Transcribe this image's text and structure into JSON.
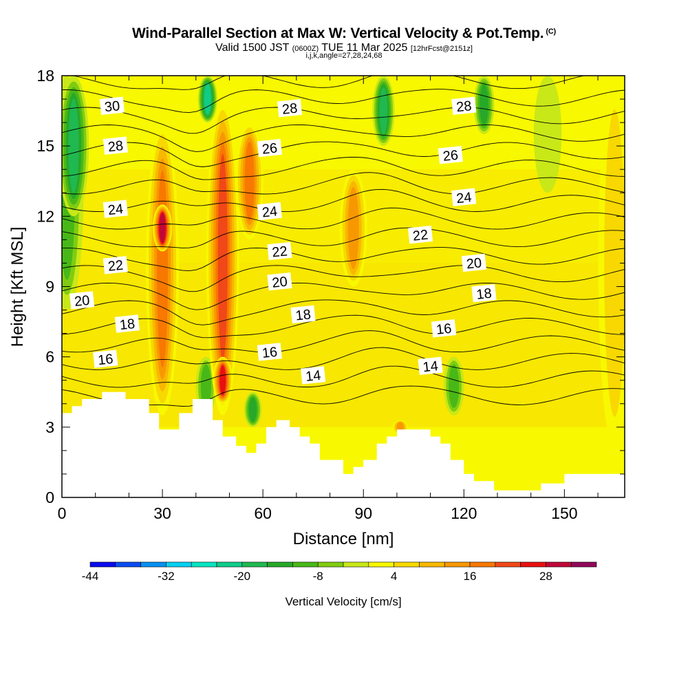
{
  "title": {
    "main": "Wind-Parallel Section at Max W: Vertical Velocity & Pot.Temp.",
    "copyright": "(C)",
    "valid_prefix": "Valid 1500 JST",
    "valid_zulu": "(0600Z)",
    "valid_date": "TUE 11 Mar 2025",
    "forecast": "[12hrFcst@2151z]",
    "indices": "i,j,k,angle=27,28,24,68"
  },
  "chart_data": {
    "type": "heatmap",
    "xlabel": "Distance [nm]",
    "ylabel": "Height [Kft MSL]",
    "xlim": [
      0,
      168
    ],
    "ylim": [
      0,
      18
    ],
    "x_ticks": [
      "0",
      "30",
      "60",
      "90",
      "120",
      "150"
    ],
    "x_tick_values": [
      0,
      30,
      60,
      90,
      120,
      150
    ],
    "y_ticks": [
      "0",
      "3",
      "6",
      "9",
      "12",
      "15",
      "18"
    ],
    "y_tick_values": [
      0,
      3,
      6,
      9,
      12,
      15,
      18
    ],
    "colorbar": {
      "label": "Vertical Velocity [cm/s]",
      "tick_labels": [
        "-44",
        "-32",
        "-20",
        "-8",
        "4",
        "16",
        "28"
      ],
      "tick_values": [
        -44,
        -32,
        -20,
        -8,
        4,
        16,
        28
      ],
      "bounds": [
        -44,
        36
      ],
      "step": 4,
      "colors": [
        "#0a0aee",
        "#0a4cf0",
        "#0890f0",
        "#06d0f2",
        "#08e4c0",
        "#10cc88",
        "#20b850",
        "#28a828",
        "#48b818",
        "#80cc10",
        "#c8e818",
        "#f8f800",
        "#f8d800",
        "#f8b800",
        "#f89800",
        "#f87800",
        "#f04818",
        "#e81010",
        "#c00838",
        "#900858"
      ]
    },
    "vertical_velocity_features": [
      {
        "x": 1.5,
        "y_range": [
          8,
          18
        ],
        "w": -12
      },
      {
        "x": 3.5,
        "y_range": [
          12,
          18
        ],
        "w": -20
      },
      {
        "x": 30,
        "y_range": [
          3.5,
          16
        ],
        "w": 20
      },
      {
        "x": 30,
        "y_range": [
          10.5,
          12.5
        ],
        "w": 32
      },
      {
        "x": 43,
        "y_range": [
          3.5,
          6
        ],
        "w": -12
      },
      {
        "x": 43.5,
        "y_range": [
          16,
          18
        ],
        "w": -24
      },
      {
        "x": 48,
        "y_range": [
          3.5,
          17
        ],
        "w": 24
      },
      {
        "x": 48,
        "y_range": [
          4,
          6
        ],
        "w": 28
      },
      {
        "x": 56,
        "y_range": [
          11,
          16
        ],
        "w": 20
      },
      {
        "x": 57,
        "y_range": [
          3,
          4.5
        ],
        "w": -16
      },
      {
        "x": 87,
        "y_range": [
          9,
          14
        ],
        "w": 16
      },
      {
        "x": 96,
        "y_range": [
          15,
          18
        ],
        "w": -20
      },
      {
        "x": 101,
        "y_range": [
          2.7,
          3.3
        ],
        "w": 16
      },
      {
        "x": 117,
        "y_range": [
          3.5,
          6
        ],
        "w": -12
      },
      {
        "x": 126,
        "y_range": [
          15.5,
          18
        ],
        "w": -16
      },
      {
        "x": 145,
        "y_range": [
          13,
          18
        ],
        "w": -4
      },
      {
        "x": 165,
        "y_range": [
          2,
          18
        ],
        "w": 8
      }
    ],
    "potential_temperature": {
      "label_units": "°C",
      "levels": [
        12,
        13,
        14,
        15,
        16,
        17,
        18,
        19,
        20,
        21,
        22,
        23,
        24,
        25,
        26,
        27,
        28,
        29,
        30,
        31
      ],
      "labels": [
        {
          "text": "30",
          "x": 15,
          "y": 16.7
        },
        {
          "text": "28",
          "x": 16,
          "y": 15.0
        },
        {
          "text": "24",
          "x": 16,
          "y": 12.3
        },
        {
          "text": "22",
          "x": 16,
          "y": 9.9
        },
        {
          "text": "20",
          "x": 6,
          "y": 8.4
        },
        {
          "text": "18",
          "x": 19.5,
          "y": 7.4
        },
        {
          "text": "16",
          "x": 13,
          "y": 5.9
        },
        {
          "text": "28",
          "x": 68,
          "y": 16.6
        },
        {
          "text": "26",
          "x": 62,
          "y": 14.9
        },
        {
          "text": "24",
          "x": 62,
          "y": 12.2
        },
        {
          "text": "22",
          "x": 65,
          "y": 10.5
        },
        {
          "text": "20",
          "x": 65,
          "y": 9.2
        },
        {
          "text": "18",
          "x": 72,
          "y": 7.8
        },
        {
          "text": "16",
          "x": 62,
          "y": 6.2
        },
        {
          "text": "14",
          "x": 75,
          "y": 5.2
        },
        {
          "text": "28",
          "x": 120,
          "y": 16.7
        },
        {
          "text": "26",
          "x": 116,
          "y": 14.6
        },
        {
          "text": "24",
          "x": 120,
          "y": 12.8
        },
        {
          "text": "22",
          "x": 107,
          "y": 11.2
        },
        {
          "text": "20",
          "x": 123,
          "y": 10.0
        },
        {
          "text": "18",
          "x": 126,
          "y": 8.7
        },
        {
          "text": "16",
          "x": 114,
          "y": 7.2
        },
        {
          "text": "14",
          "x": 110,
          "y": 5.6
        }
      ]
    },
    "terrain": [
      [
        0,
        3.6
      ],
      [
        3,
        3.6
      ],
      [
        3,
        3.9
      ],
      [
        6,
        3.9
      ],
      [
        6,
        4.2
      ],
      [
        12,
        4.2
      ],
      [
        12,
        4.5
      ],
      [
        19,
        4.5
      ],
      [
        19,
        4.2
      ],
      [
        26,
        4.2
      ],
      [
        26,
        3.6
      ],
      [
        29,
        3.6
      ],
      [
        29,
        2.9
      ],
      [
        35,
        2.9
      ],
      [
        35,
        3.6
      ],
      [
        39,
        3.6
      ],
      [
        39,
        4.2
      ],
      [
        45,
        4.2
      ],
      [
        45,
        3.3
      ],
      [
        48,
        3.3
      ],
      [
        48,
        2.6
      ],
      [
        52,
        2.6
      ],
      [
        52,
        2.2
      ],
      [
        55,
        2.2
      ],
      [
        55,
        1.9
      ],
      [
        58,
        1.9
      ],
      [
        58,
        2.3
      ],
      [
        61,
        2.3
      ],
      [
        61,
        3.0
      ],
      [
        64,
        3.0
      ],
      [
        64,
        3.3
      ],
      [
        68,
        3.3
      ],
      [
        68,
        3.0
      ],
      [
        71,
        3.0
      ],
      [
        71,
        2.6
      ],
      [
        74,
        2.6
      ],
      [
        74,
        2.3
      ],
      [
        77,
        2.3
      ],
      [
        77,
        1.6
      ],
      [
        84,
        1.6
      ],
      [
        84,
        1.0
      ],
      [
        87,
        1.0
      ],
      [
        87,
        1.3
      ],
      [
        90,
        1.3
      ],
      [
        90,
        1.6
      ],
      [
        94,
        1.6
      ],
      [
        94,
        2.3
      ],
      [
        97,
        2.3
      ],
      [
        97,
        2.6
      ],
      [
        100,
        2.6
      ],
      [
        100,
        2.9
      ],
      [
        110,
        2.9
      ],
      [
        110,
        2.6
      ],
      [
        113,
        2.6
      ],
      [
        113,
        2.3
      ],
      [
        116,
        2.3
      ],
      [
        116,
        1.6
      ],
      [
        120,
        1.6
      ],
      [
        120,
        1.0
      ],
      [
        123,
        1.0
      ],
      [
        123,
        0.7
      ],
      [
        129,
        0.7
      ],
      [
        129,
        0.3
      ],
      [
        143,
        0.3
      ],
      [
        143,
        0.6
      ],
      [
        150,
        0.6
      ],
      [
        150,
        1.0
      ],
      [
        168,
        1.0
      ]
    ]
  }
}
